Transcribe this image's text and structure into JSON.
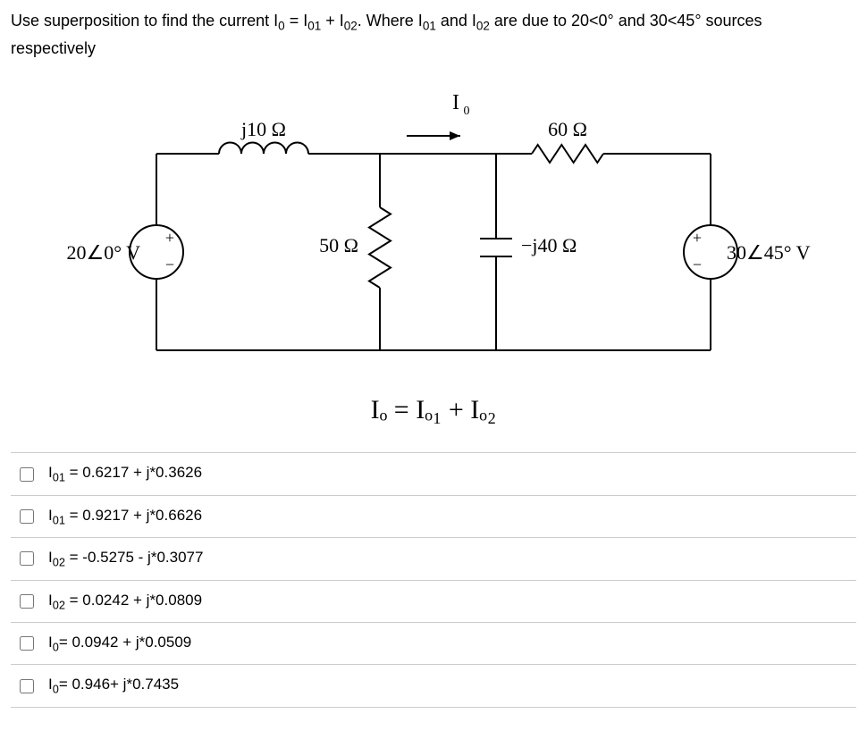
{
  "question": {
    "line1_prefix": "Use superposition to find the current I",
    "sub0": "0",
    "line1_mid1": " = I",
    "sub01a": "01",
    "line1_mid2": " + I",
    "sub02a": "02",
    "line1_mid3": ". Where I",
    "sub01b": "01",
    "line1_mid4": " and I",
    "sub02b": "02",
    "line1_suffix": " are due to 20<0° and 30<45° sources",
    "line2": "respectively"
  },
  "circuit": {
    "I0_label": "I",
    "I0_sub": "0",
    "j10_label": "j10 Ω",
    "r60_label": "60 Ω",
    "r50_label": "50 Ω",
    "mj40_label": "−j40 Ω",
    "src_left_label": "20∠0° V",
    "src_right_label": "30∠45° V",
    "plus": "+",
    "minus": "−",
    "wire_color": "#000000",
    "wire_width": 2,
    "font_family": "Georgia, 'Times New Roman', serif",
    "label_font_size": 22
  },
  "equation": {
    "text": "Iₒ = Iₒ₁ + Iₒ₂"
  },
  "options": [
    {
      "prefix": "I",
      "sub": "01",
      "rest": " = 0.6217 + j*0.3626"
    },
    {
      "prefix": "I",
      "sub": "01",
      "rest": " = 0.9217 + j*0.6626"
    },
    {
      "prefix": "I",
      "sub": "02",
      "rest": " = -0.5275 - j*0.3077"
    },
    {
      "prefix": "I",
      "sub": "02",
      "rest": " = 0.0242 + j*0.0809"
    },
    {
      "prefix": "I",
      "sub": "0",
      "rest": "= 0.0942 + j*0.0509"
    },
    {
      "prefix": "I",
      "sub": "0",
      "rest": "= 0.946+ j*0.7435"
    }
  ]
}
